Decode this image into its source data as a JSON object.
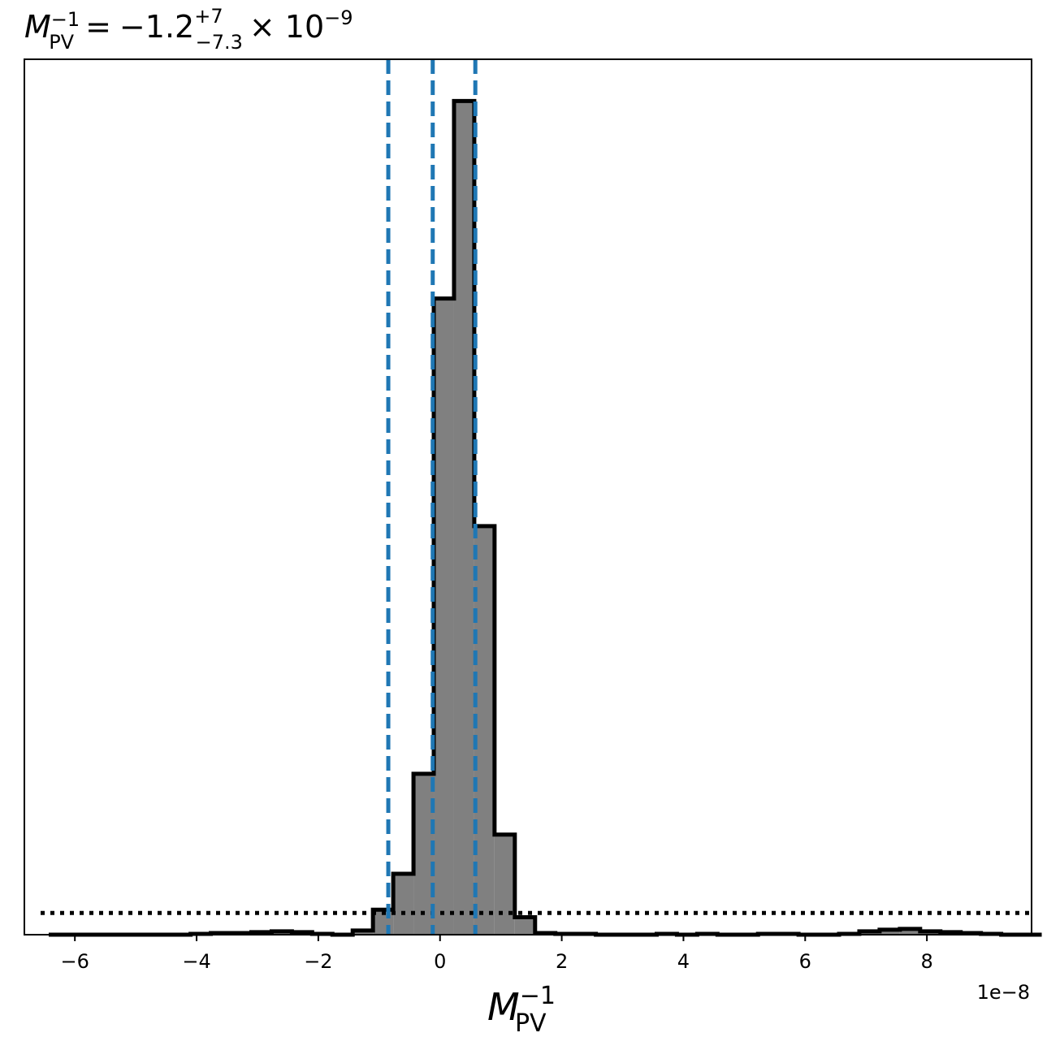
{
  "chart_data": {
    "type": "histogram",
    "title": {
      "lhs_base": "M",
      "lhs_sub": "PV",
      "lhs_sup": "−1",
      "equals": "=",
      "value": "−1.2",
      "upper": "+7",
      "lower": "−7.3",
      "multiplier": "× 10",
      "exponent": "−9"
    },
    "xlabel": {
      "base": "M",
      "sub": "PV",
      "sup": "−1"
    },
    "x_offset_text": "1e−8",
    "xlim": [
      -6.83,
      9.72
    ],
    "ylim": [
      0,
      1.05
    ],
    "xticks": [
      {
        "value": -6,
        "label": "−6"
      },
      {
        "value": -4,
        "label": "−4"
      },
      {
        "value": -2,
        "label": "−2"
      },
      {
        "value": 0,
        "label": "0"
      },
      {
        "value": 2,
        "label": "2"
      },
      {
        "value": 4,
        "label": "4"
      },
      {
        "value": 6,
        "label": "6"
      },
      {
        "value": 8,
        "label": "8"
      }
    ],
    "bins": {
      "start": -6.43,
      "width": 0.333,
      "values": [
        0.0,
        0.0,
        0.0,
        0.0,
        0.0,
        0.0,
        0.0,
        0.001,
        0.002,
        0.002,
        0.003,
        0.004,
        0.003,
        0.001,
        0.0,
        0.005,
        0.03,
        0.073,
        0.193,
        0.763,
        1.0,
        0.49,
        0.12,
        0.021,
        0.002,
        0.001,
        0.001,
        0.0,
        0.0,
        0.0,
        0.001,
        0.0,
        0.001,
        0.0,
        0.0,
        0.001,
        0.001,
        0.0,
        0.0,
        0.001,
        0.004,
        0.006,
        0.007,
        0.004,
        0.003,
        0.002,
        0.001,
        0.0,
        0.0
      ]
    },
    "dashed_lines": [
      -0.85,
      -0.12,
      0.58
    ],
    "dotted_level": 0.026,
    "colors": {
      "fill": "#808080",
      "edge": "#000000",
      "dashed": "#1f77b4",
      "dotted": "#000000"
    }
  }
}
